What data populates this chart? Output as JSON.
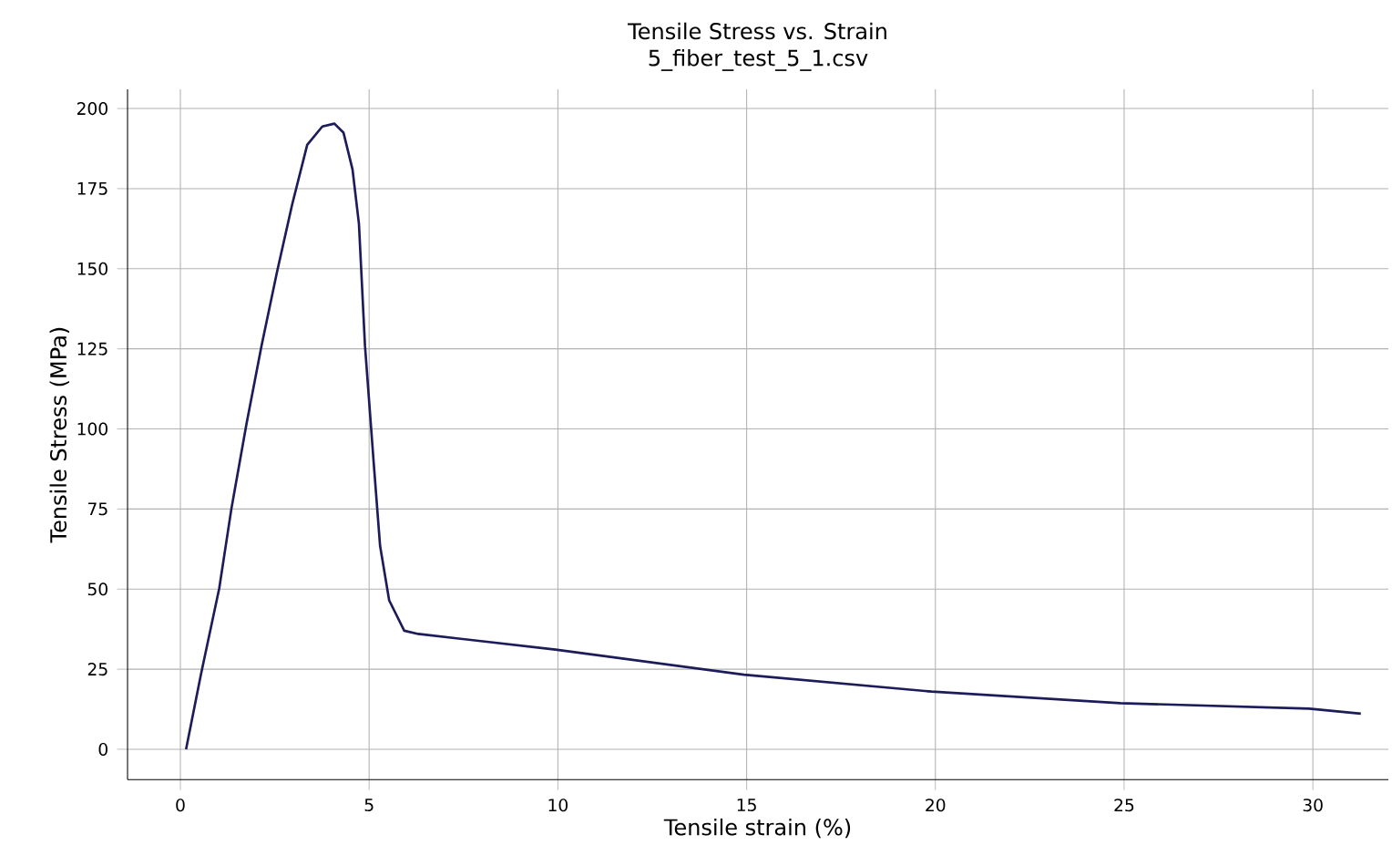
{
  "chart_data": {
    "type": "line",
    "title": "Tensile Stress vs. Strain",
    "subtitle": "5_fiber_test_5_1.csv",
    "xlabel": "Tensile strain (%)",
    "ylabel": "Tensile Stress (MPa)",
    "xlim": [
      -1.4,
      32
    ],
    "ylim": [
      -9.5,
      206
    ],
    "xticks": [
      0,
      5,
      10,
      15,
      20,
      25,
      30
    ],
    "yticks": [
      0,
      25,
      50,
      75,
      100,
      125,
      150,
      175,
      200
    ],
    "grid": true,
    "series": [
      {
        "color": "#1c1c5a",
        "x": [
          0.15,
          0.55,
          1.03,
          1.35,
          1.75,
          2.15,
          2.56,
          2.96,
          3.36,
          3.76,
          4.08,
          4.32,
          4.56,
          4.73,
          4.89,
          5.13,
          5.29,
          5.53,
          5.93,
          6.3,
          9.94,
          14.93,
          19.9,
          24.9,
          29.9,
          31.27
        ],
        "values": [
          0,
          23.7,
          50.3,
          75,
          101.5,
          126,
          149,
          170,
          188.7,
          194.4,
          195.3,
          192.5,
          181,
          164,
          126,
          88,
          63.5,
          46.5,
          37,
          36,
          31.1,
          23.3,
          18,
          14.4,
          12.7,
          11.1
        ]
      }
    ]
  }
}
